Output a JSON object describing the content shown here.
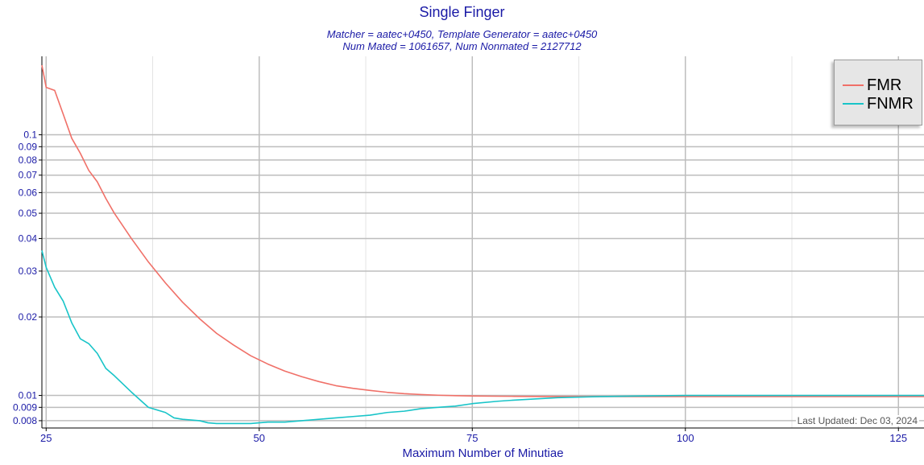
{
  "chart_data": {
    "type": "line",
    "title": "Single Finger",
    "subtitle_line1": "Matcher = aatec+0450, Template Generator = aatec+0450",
    "subtitle_line2": "Num Mated = 1061657, Num Nonmated = 2127712",
    "xlabel": "Maximum Number of Minutiae",
    "ylabel": "",
    "xlim": [
      24.5,
      128
    ],
    "ylim": [
      0.0075,
      0.2
    ],
    "yscale": "log",
    "grid": true,
    "legend_position": "top-right",
    "x_ticks": [
      "25",
      "50",
      "75",
      "100",
      "125"
    ],
    "y_ticks": [
      "0.008",
      "0.009",
      "0.01",
      "0.02",
      "0.03",
      "0.04",
      "0.05",
      "0.06",
      "0.07",
      "0.08",
      "0.09",
      "0.1"
    ],
    "annotation": "Last Updated: Dec 03, 2024",
    "series": [
      {
        "name": "FMR",
        "color": "#f07068",
        "x": [
          24.5,
          25,
          26,
          27,
          28,
          29,
          30,
          31,
          32,
          33,
          35,
          37,
          39,
          41,
          43,
          45,
          47,
          49,
          51,
          53,
          55,
          57,
          59,
          61,
          63,
          65,
          67,
          69,
          71,
          73,
          75,
          78,
          80,
          85,
          90,
          95,
          100,
          105,
          110,
          115,
          120,
          128
        ],
        "values": [
          0.185,
          0.152,
          0.148,
          0.12,
          0.097,
          0.085,
          0.073,
          0.066,
          0.057,
          0.05,
          0.04,
          0.0325,
          0.027,
          0.0228,
          0.0197,
          0.0173,
          0.0156,
          0.0142,
          0.0132,
          0.0124,
          0.0118,
          0.0113,
          0.0109,
          0.01065,
          0.01045,
          0.01028,
          0.01016,
          0.01008,
          0.01002,
          0.00998,
          0.00995,
          0.00993,
          0.00992,
          0.0099,
          0.0099,
          0.0099,
          0.0099,
          0.0099,
          0.0099,
          0.0099,
          0.0099,
          0.0099
        ]
      },
      {
        "name": "FNMR",
        "color": "#18c4c8",
        "x": [
          24.5,
          25,
          26,
          27,
          28,
          29,
          30,
          31,
          32,
          33,
          35,
          37,
          39,
          40,
          41,
          43,
          44,
          45,
          47,
          49,
          51,
          53,
          55,
          57,
          59,
          61,
          63,
          65,
          67,
          69,
          71,
          73,
          75,
          78,
          80,
          85,
          90,
          95,
          100,
          105,
          110,
          115,
          120,
          128
        ],
        "values": [
          0.036,
          0.031,
          0.026,
          0.023,
          0.019,
          0.0165,
          0.0158,
          0.0145,
          0.0127,
          0.0119,
          0.0103,
          0.009,
          0.0086,
          0.0082,
          0.0081,
          0.008,
          0.00785,
          0.0078,
          0.0078,
          0.0078,
          0.0079,
          0.0079,
          0.008,
          0.0081,
          0.0082,
          0.0083,
          0.0084,
          0.0086,
          0.0087,
          0.0089,
          0.009,
          0.0091,
          0.0093,
          0.0095,
          0.0096,
          0.0098,
          0.0099,
          0.00995,
          0.01,
          0.01,
          0.01,
          0.01,
          0.01,
          0.01
        ]
      }
    ]
  }
}
